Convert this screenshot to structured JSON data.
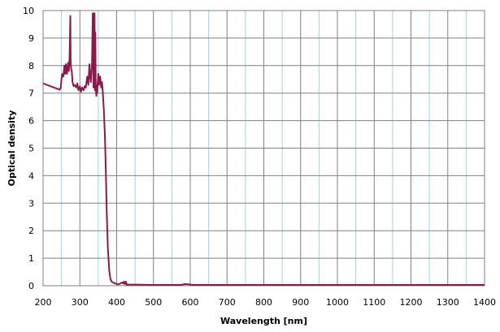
{
  "chart_data": {
    "type": "line",
    "title": "",
    "xlabel": "Wavelength [nm]",
    "ylabel": "Optical density",
    "xlim": [
      200,
      1400
    ],
    "ylim": [
      0,
      10
    ],
    "x_ticks": [
      200,
      300,
      400,
      500,
      600,
      700,
      800,
      900,
      1000,
      1100,
      1200,
      1300,
      1400
    ],
    "y_ticks": [
      0,
      1,
      2,
      3,
      4,
      5,
      6,
      7,
      8,
      9,
      10
    ],
    "x_minor_gridlines": [
      250,
      350,
      450,
      550,
      650,
      750,
      850,
      950,
      1050,
      1150,
      1250,
      1350
    ],
    "grid": true,
    "legend": "none",
    "colors": {
      "line": "#8b1a4a",
      "major_grid": "#808080",
      "minor_grid": "#9fd3e6",
      "axis": "#808080"
    },
    "series": [
      {
        "x": [
          200,
          210,
          220,
          230,
          240,
          245,
          248,
          250,
          252,
          255,
          258,
          260,
          262,
          265,
          268,
          270,
          272,
          274,
          275,
          276,
          278,
          280,
          283,
          286,
          290,
          293,
          296,
          300,
          303,
          306,
          310,
          313,
          316,
          320,
          323,
          326,
          328,
          330,
          333,
          335,
          337,
          338,
          339,
          340,
          341,
          342,
          343,
          344,
          345,
          346,
          347,
          348,
          350,
          352,
          355,
          358,
          360,
          362,
          365,
          368,
          370,
          373,
          376,
          380,
          383,
          386,
          390,
          393,
          396,
          400,
          405,
          410,
          415,
          418,
          420,
          423,
          425,
          428,
          430,
          435,
          450,
          500,
          550,
          575,
          585,
          595,
          605,
          700,
          800,
          900,
          1000,
          1100,
          1200,
          1300,
          1400
        ],
        "y": [
          7.35,
          7.3,
          7.25,
          7.2,
          7.15,
          7.12,
          7.2,
          7.5,
          7.7,
          7.6,
          8.0,
          7.7,
          8.05,
          7.7,
          8.1,
          7.8,
          8.3,
          9.8,
          8.2,
          7.9,
          7.8,
          7.4,
          7.25,
          7.3,
          7.2,
          7.35,
          7.1,
          7.25,
          7.05,
          7.2,
          7.1,
          7.25,
          7.2,
          7.6,
          7.3,
          8.05,
          7.6,
          7.4,
          8.1,
          9.9,
          7.2,
          9.9,
          7.6,
          9.9,
          7.1,
          9.2,
          7.4,
          7.0,
          6.9,
          7.3,
          7.0,
          7.3,
          7.7,
          7.3,
          7.6,
          7.2,
          7.4,
          7.1,
          6.4,
          5.5,
          4.5,
          2.7,
          1.4,
          0.55,
          0.25,
          0.15,
          0.12,
          0.1,
          0.08,
          0.07,
          0.05,
          0.08,
          0.12,
          0.08,
          0.15,
          0.05,
          0.15,
          0.03,
          0.04,
          0.04,
          0.04,
          0.03,
          0.03,
          0.03,
          0.06,
          0.05,
          0.03,
          0.03,
          0.03,
          0.03,
          0.03,
          0.03,
          0.03,
          0.03,
          0.03
        ]
      }
    ]
  }
}
